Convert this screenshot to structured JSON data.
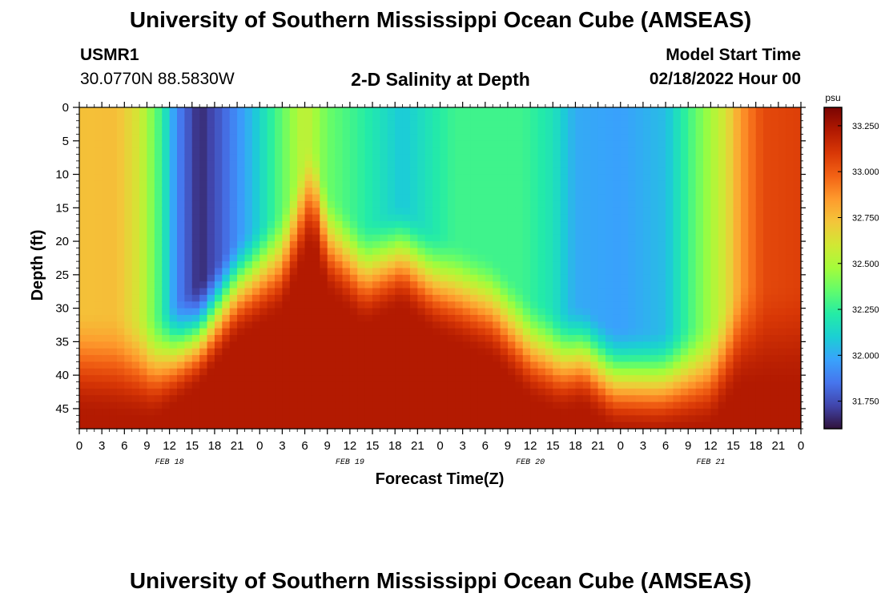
{
  "header": {
    "title": "University of Southern Mississippi Ocean Cube (AMSEAS)",
    "station_id": "USMR1",
    "station_coords": "30.0770N  88.5830W",
    "chart_subtitle": "2-D Salinity at Depth",
    "model_start_label": "Model Start Time",
    "model_start_value": "02/18/2022 Hour 00"
  },
  "footer": {
    "title": "University of Southern Mississippi Ocean Cube (AMSEAS)"
  },
  "chart_data": {
    "type": "heatmap",
    "title": "2-D Salinity at Depth",
    "xlabel": "Forecast Time(Z)",
    "ylabel": "Depth (ft)",
    "x_range_hours": [
      0,
      96
    ],
    "y_range_ft": [
      0,
      48
    ],
    "x_ticks": [
      "0",
      "3",
      "6",
      "9",
      "12",
      "15",
      "18",
      "21",
      "0",
      "3",
      "6",
      "9",
      "12",
      "15",
      "18",
      "21",
      "0",
      "3",
      "6",
      "9",
      "12",
      "15",
      "18",
      "21",
      "0",
      "3",
      "6",
      "9",
      "12",
      "15",
      "18",
      "21",
      "0"
    ],
    "date_labels": [
      {
        "label": "FEB 18",
        "hour": 12
      },
      {
        "label": "FEB 19",
        "hour": 36
      },
      {
        "label": "FEB 20",
        "hour": 60
      },
      {
        "label": "FEB 21",
        "hour": 84
      }
    ],
    "y_ticks": [
      "0",
      "5",
      "10",
      "15",
      "20",
      "25",
      "30",
      "35",
      "40",
      "45"
    ],
    "colorbar": {
      "unit": "psu",
      "min": 31.6,
      "max": 33.35,
      "ticks": [
        "31.750",
        "32.000",
        "32.250",
        "32.500",
        "32.750",
        "33.000",
        "33.250"
      ],
      "colors": [
        "#30123b",
        "#4145ab",
        "#4675ed",
        "#39a2fc",
        "#1bcfd4",
        "#24eca6",
        "#61fc6c",
        "#a4fc3b",
        "#d1e834",
        "#f3c63a",
        "#fe9b2d",
        "#f36315",
        "#d93806",
        "#b11901",
        "#7a0402"
      ]
    },
    "surface_salinity_profile": [
      {
        "hour": 0,
        "value": 32.74
      },
      {
        "hour": 5,
        "value": 32.75
      },
      {
        "hour": 8,
        "value": 32.6
      },
      {
        "hour": 11,
        "value": 32.25
      },
      {
        "hour": 13,
        "value": 31.9
      },
      {
        "hour": 16,
        "value": 31.65
      },
      {
        "hour": 19,
        "value": 31.8
      },
      {
        "hour": 23,
        "value": 32.05
      },
      {
        "hour": 27,
        "value": 32.35
      },
      {
        "hour": 30,
        "value": 32.57
      },
      {
        "hour": 33,
        "value": 32.37
      },
      {
        "hour": 37,
        "value": 32.26
      },
      {
        "hour": 43,
        "value": 32.08
      },
      {
        "hour": 47,
        "value": 32.2
      },
      {
        "hour": 50,
        "value": 32.28
      },
      {
        "hour": 59,
        "value": 32.28
      },
      {
        "hour": 63,
        "value": 32.18
      },
      {
        "hour": 66,
        "value": 32.0
      },
      {
        "hour": 72,
        "value": 31.97
      },
      {
        "hour": 78,
        "value": 32.05
      },
      {
        "hour": 82,
        "value": 32.35
      },
      {
        "hour": 86,
        "value": 32.62
      },
      {
        "hour": 88,
        "value": 32.85
      },
      {
        "hour": 91,
        "value": 33.05
      },
      {
        "hour": 96,
        "value": 33.08
      }
    ],
    "bottom_layer_depth_profile_ft": [
      {
        "hour": 0,
        "depth": 44
      },
      {
        "hour": 10,
        "depth": 45
      },
      {
        "hour": 16,
        "depth": 40
      },
      {
        "hour": 21,
        "depth": 33
      },
      {
        "hour": 27,
        "depth": 29
      },
      {
        "hour": 31,
        "depth": 18
      },
      {
        "hour": 33,
        "depth": 26
      },
      {
        "hour": 38,
        "depth": 31
      },
      {
        "hour": 43,
        "depth": 28
      },
      {
        "hour": 47,
        "depth": 32
      },
      {
        "hour": 55,
        "depth": 36
      },
      {
        "hour": 60,
        "depth": 42
      },
      {
        "hour": 64,
        "depth": 44
      },
      {
        "hour": 67,
        "depth": 43
      },
      {
        "hour": 71,
        "depth": 46.5
      },
      {
        "hour": 77,
        "depth": 47
      },
      {
        "hour": 84,
        "depth": 46
      },
      {
        "hour": 88,
        "depth": 40
      },
      {
        "hour": 96,
        "depth": 40
      }
    ]
  }
}
